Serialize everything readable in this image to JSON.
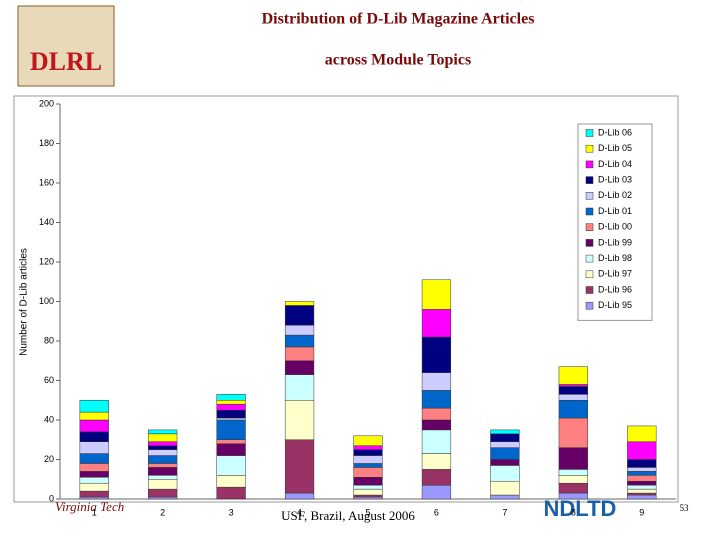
{
  "slide": {
    "title": "Distribution of D-Lib Magazine Articles",
    "subtitle": "across Module Topics",
    "footer": "USF, Brazil, August 2006",
    "page_number": "53",
    "logo_left": "DLRL",
    "logo_bottom_left": "Virginia Tech",
    "logo_bottom_right": "NDLTD"
  },
  "chart_data": {
    "type": "stacked_bar",
    "y_label": "Number of D-Lib articles",
    "categories": [
      "1",
      "2",
      "3",
      "4",
      "5",
      "6",
      "7",
      "8",
      "9"
    ],
    "ylim": [
      0,
      200
    ],
    "yticks": [
      0,
      20,
      40,
      60,
      80,
      100,
      120,
      140,
      160,
      180,
      200
    ],
    "legend": "top-right",
    "series": [
      {
        "name": "D-Lib 95",
        "color": "#9999ff",
        "values": [
          1,
          1,
          0,
          3,
          1,
          7,
          2,
          3,
          2
        ]
      },
      {
        "name": "D-Lib 96",
        "color": "#993366",
        "values": [
          3,
          4,
          6,
          27,
          1,
          8,
          0,
          5,
          1
        ]
      },
      {
        "name": "D-Lib 97",
        "color": "#ffffcc",
        "values": [
          4,
          5,
          6,
          20,
          3,
          8,
          7,
          4,
          2
        ]
      },
      {
        "name": "D-Lib 98",
        "color": "#ccffff",
        "values": [
          3,
          2,
          10,
          13,
          2,
          12,
          8,
          3,
          2
        ]
      },
      {
        "name": "D-Lib 99",
        "color": "#660066",
        "values": [
          3,
          4,
          6,
          7,
          4,
          5,
          3,
          11,
          2
        ]
      },
      {
        "name": "D-Lib 00",
        "color": "#ff8080",
        "values": [
          4,
          2,
          2,
          7,
          5,
          6,
          0,
          15,
          3
        ]
      },
      {
        "name": "D-Lib 01",
        "color": "#0066cc",
        "values": [
          5,
          4,
          10,
          6,
          2,
          9,
          6,
          9,
          2
        ]
      },
      {
        "name": "D-Lib 02",
        "color": "#ccccff",
        "values": [
          6,
          3,
          1,
          5,
          4,
          9,
          3,
          3,
          2
        ]
      },
      {
        "name": "D-Lib 03",
        "color": "#000080",
        "values": [
          5,
          2,
          4,
          10,
          3,
          18,
          4,
          4,
          4
        ]
      },
      {
        "name": "D-Lib 04",
        "color": "#ff00ff",
        "values": [
          6,
          2,
          3,
          0,
          2,
          14,
          0,
          1,
          9
        ]
      },
      {
        "name": "D-Lib 05",
        "color": "#ffff00",
        "values": [
          4,
          4,
          2,
          2,
          5,
          15,
          0,
          9,
          8
        ]
      },
      {
        "name": "D-Lib 06",
        "color": "#00ffff",
        "values": [
          6,
          2,
          3,
          0,
          0,
          0,
          2,
          0,
          0
        ]
      }
    ]
  }
}
